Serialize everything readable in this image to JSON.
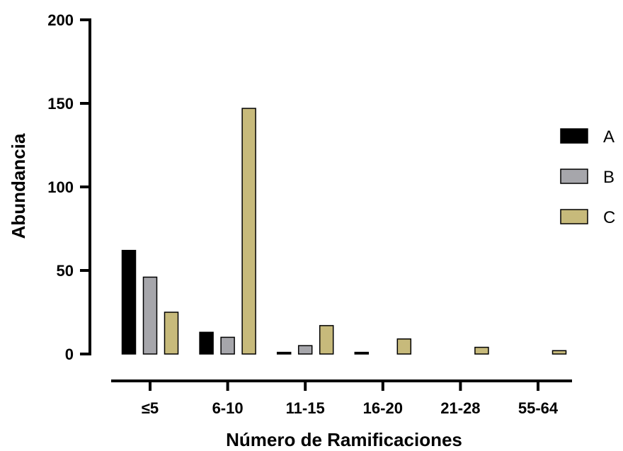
{
  "chart_data": {
    "type": "bar",
    "title": "",
    "xlabel": "Número de Ramificaciones",
    "ylabel": "Abundancia",
    "categories": [
      "≤5",
      "6-10",
      "11-15",
      "16-20",
      "21-28",
      "55-64"
    ],
    "series": [
      {
        "name": "A",
        "color": "#000000",
        "values": [
          62,
          13,
          1,
          1,
          0,
          0
        ]
      },
      {
        "name": "B",
        "color": "#a6a6ab",
        "values": [
          46,
          10,
          5,
          0,
          0,
          0
        ]
      },
      {
        "name": "C",
        "color": "#c7ba7b",
        "values": [
          25,
          147,
          17,
          9,
          4,
          2
        ]
      }
    ],
    "ylim": [
      0,
      200
    ],
    "yticks": [
      "0",
      "50",
      "100",
      "150",
      "200"
    ],
    "legend_position": "right",
    "grid": false
  }
}
